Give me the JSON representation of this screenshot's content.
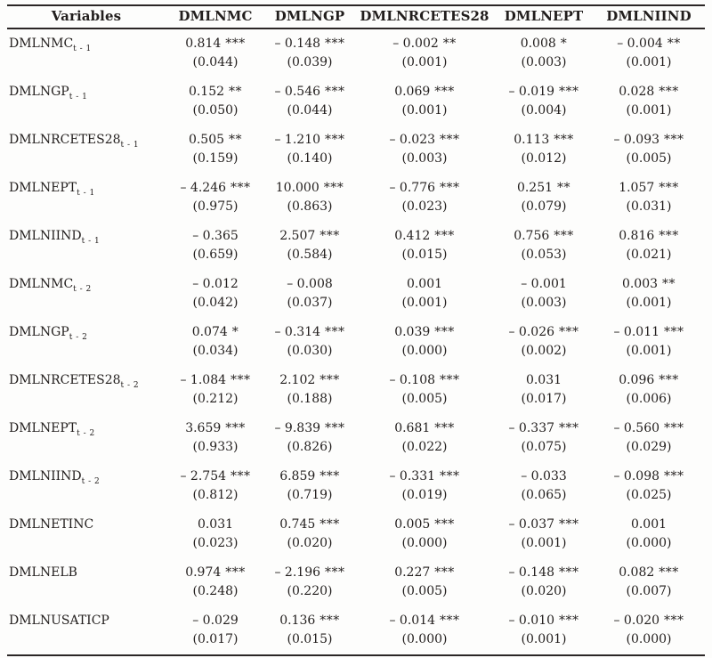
{
  "page": {
    "background": "#fdfdfc",
    "text_color": "#221e1d",
    "rule_color": "#2b2626"
  },
  "table": {
    "header": [
      "Variables",
      "DMLNMC",
      "DMLNGP",
      "DMLNRCETES28",
      "DMLNEPT",
      "DMLNIIND"
    ],
    "rows": [
      {
        "var": "DMLNMC",
        "sub": "t - 1",
        "cells": [
          {
            "est": "0.814",
            "stars": "***",
            "se": "(0.044)"
          },
          {
            "est": "– 0.148",
            "stars": "***",
            "se": "(0.039)"
          },
          {
            "est": "– 0.002",
            "stars": "**",
            "se": "(0.001)"
          },
          {
            "est": "0.008",
            "stars": "*",
            "se": "(0.003)"
          },
          {
            "est": "– 0.004",
            "stars": "**",
            "se": "(0.001)"
          }
        ]
      },
      {
        "var": "DMLNGP",
        "sub": "t - 1",
        "cells": [
          {
            "est": "0.152",
            "stars": "**",
            "se": "(0.050)"
          },
          {
            "est": "– 0.546",
            "stars": "***",
            "se": "(0.044)"
          },
          {
            "est": "0.069",
            "stars": "***",
            "se": "(0.001)"
          },
          {
            "est": "– 0.019",
            "stars": "***",
            "se": "(0.004)"
          },
          {
            "est": "0.028",
            "stars": "***",
            "se": "(0.001)"
          }
        ]
      },
      {
        "var": "DMLNRCETES28",
        "sub": "t - 1",
        "cells": [
          {
            "est": "0.505",
            "stars": "**",
            "se": "(0.159)"
          },
          {
            "est": "– 1.210",
            "stars": "***",
            "se": "(0.140)"
          },
          {
            "est": "– 0.023",
            "stars": "***",
            "se": "(0.003)"
          },
          {
            "est": "0.113",
            "stars": "***",
            "se": "(0.012)"
          },
          {
            "est": "– 0.093",
            "stars": "***",
            "se": "(0.005)"
          }
        ]
      },
      {
        "var": "DMLNEPT",
        "sub": "t - 1",
        "cells": [
          {
            "est": "– 4.246",
            "stars": "***",
            "se": "(0.975)"
          },
          {
            "est": "10.000",
            "stars": "***",
            "se": "(0.863)"
          },
          {
            "est": "– 0.776",
            "stars": "***",
            "se": "(0.023)"
          },
          {
            "est": "0.251",
            "stars": "**",
            "se": "(0.079)"
          },
          {
            "est": "1.057",
            "stars": "***",
            "se": "(0.031)"
          }
        ]
      },
      {
        "var": "DMLNIIND",
        "sub": "t - 1",
        "cells": [
          {
            "est": "– 0.365",
            "stars": "",
            "se": "(0.659)"
          },
          {
            "est": "2.507",
            "stars": "***",
            "se": "(0.584)"
          },
          {
            "est": "0.412",
            "stars": "***",
            "se": "(0.015)"
          },
          {
            "est": "0.756",
            "stars": "***",
            "se": "(0.053)"
          },
          {
            "est": "0.816",
            "stars": "***",
            "se": "(0.021)"
          }
        ]
      },
      {
        "var": "DMLNMC",
        "sub": "t - 2",
        "cells": [
          {
            "est": "– 0.012",
            "stars": "",
            "se": "(0.042)"
          },
          {
            "est": "– 0.008",
            "stars": "",
            "se": "(0.037)"
          },
          {
            "est": "0.001",
            "stars": "",
            "se": "(0.001)"
          },
          {
            "est": "– 0.001",
            "stars": "",
            "se": "(0.003)"
          },
          {
            "est": "0.003",
            "stars": "**",
            "se": "(0.001)"
          }
        ]
      },
      {
        "var": "DMLNGP",
        "sub": "t - 2",
        "cells": [
          {
            "est": "0.074",
            "stars": "*",
            "se": "(0.034)"
          },
          {
            "est": "– 0.314",
            "stars": "***",
            "se": "(0.030)"
          },
          {
            "est": "0.039",
            "stars": "***",
            "se": "(0.000)"
          },
          {
            "est": "– 0.026",
            "stars": "***",
            "se": "(0.002)"
          },
          {
            "est": "– 0.011",
            "stars": "***",
            "se": "(0.001)"
          }
        ]
      },
      {
        "var": "DMLNRCETES28",
        "sub": "t - 2",
        "cells": [
          {
            "est": "– 1.084",
            "stars": "***",
            "se": "(0.212)"
          },
          {
            "est": "2.102",
            "stars": "***",
            "se": "(0.188)"
          },
          {
            "est": "– 0.108",
            "stars": "***",
            "se": "(0.005)"
          },
          {
            "est": "0.031",
            "stars": "",
            "se": "(0.017)"
          },
          {
            "est": "0.096",
            "stars": "***",
            "se": "(0.006)"
          }
        ]
      },
      {
        "var": "DMLNEPT",
        "sub": "t - 2",
        "cells": [
          {
            "est": "3.659",
            "stars": "***",
            "se": "(0.933)"
          },
          {
            "est": "– 9.839",
            "stars": "***",
            "se": "(0.826)"
          },
          {
            "est": "0.681",
            "stars": "***",
            "se": "(0.022)"
          },
          {
            "est": "– 0.337",
            "stars": "***",
            "se": "(0.075)"
          },
          {
            "est": "– 0.560",
            "stars": "***",
            "se": "(0.029)"
          }
        ]
      },
      {
        "var": "DMLNIIND",
        "sub": "t - 2",
        "cells": [
          {
            "est": "– 2.754",
            "stars": "***",
            "se": "(0.812)"
          },
          {
            "est": "6.859",
            "stars": "***",
            "se": "(0.719)"
          },
          {
            "est": "– 0.331",
            "stars": "***",
            "se": "(0.019)"
          },
          {
            "est": "– 0.033",
            "stars": "",
            "se": "(0.065)"
          },
          {
            "est": "– 0.098",
            "stars": "***",
            "se": "(0.025)"
          }
        ]
      },
      {
        "var": "DMLNETINC",
        "sub": "",
        "cells": [
          {
            "est": "0.031",
            "stars": "",
            "se": "(0.023)"
          },
          {
            "est": "0.745",
            "stars": "***",
            "se": "(0.020)"
          },
          {
            "est": "0.005",
            "stars": "***",
            "se": "(0.000)"
          },
          {
            "est": "– 0.037",
            "stars": "***",
            "se": "(0.001)"
          },
          {
            "est": "0.001",
            "stars": "",
            "se": "(0.000)"
          }
        ]
      },
      {
        "var": "DMLNELB",
        "sub": "",
        "cells": [
          {
            "est": "0.974",
            "stars": "***",
            "se": "(0.248)"
          },
          {
            "est": "– 2.196",
            "stars": "***",
            "se": "(0.220)"
          },
          {
            "est": "0.227",
            "stars": "***",
            "se": "(0.005)"
          },
          {
            "est": "– 0.148",
            "stars": "***",
            "se": "(0.020)"
          },
          {
            "est": "0.082",
            "stars": "***",
            "se": "(0.007)"
          }
        ]
      },
      {
        "var": "DMLNUSATICP",
        "sub": "",
        "cells": [
          {
            "est": "– 0.029",
            "stars": "",
            "se": "(0.017)"
          },
          {
            "est": "0.136",
            "stars": "***",
            "se": "(0.015)"
          },
          {
            "est": "– 0.014",
            "stars": "***",
            "se": "(0.000)"
          },
          {
            "est": "– 0.010",
            "stars": "***",
            "se": "(0.001)"
          },
          {
            "est": "– 0.020",
            "stars": "***",
            "se": "(0.000)"
          }
        ]
      }
    ]
  }
}
